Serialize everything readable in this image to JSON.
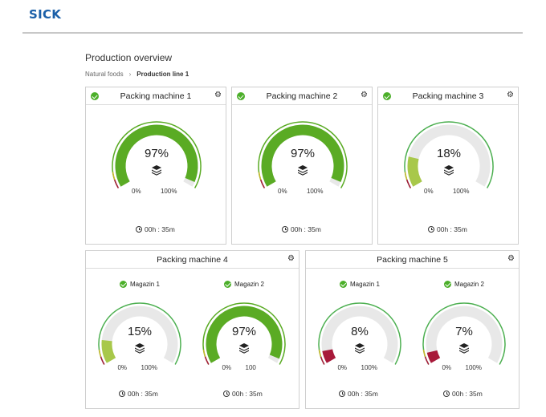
{
  "header": {
    "logo": "SICK"
  },
  "page": {
    "title": "Production overview",
    "breadcrumb": {
      "parent": "Natural foods",
      "current": "Production line 1"
    }
  },
  "colors": {
    "high": "#5aab24",
    "mid": "#a8c84a",
    "low": "#a8193a",
    "track": "#e8e8e8",
    "outer_good": "#4caf50",
    "status_ok": "#4caf2a"
  },
  "cards": [
    {
      "title": "Packing machine 1",
      "gauges": [
        {
          "label": "",
          "percent": 97,
          "value_text": "97%",
          "min_label": "0%",
          "max_label": "100%",
          "timer": "00h : 35m"
        }
      ]
    },
    {
      "title": "Packing machine 2",
      "gauges": [
        {
          "label": "",
          "percent": 97,
          "value_text": "97%",
          "min_label": "0%",
          "max_label": "100%",
          "timer": "00h : 35m"
        }
      ]
    },
    {
      "title": "Packing machine 3",
      "gauges": [
        {
          "label": "",
          "percent": 18,
          "value_text": "18%",
          "min_label": "0%",
          "max_label": "100%",
          "timer": "00h : 35m"
        }
      ]
    },
    {
      "title": "Packing machine 4",
      "gauges": [
        {
          "label": "Magazin 1",
          "percent": 15,
          "value_text": "15%",
          "min_label": "0%",
          "max_label": "100%",
          "timer": "00h : 35m"
        },
        {
          "label": "Magazin 2",
          "percent": 97,
          "value_text": "97%",
          "min_label": "0%",
          "max_label": "100",
          "timer": "00h : 35m"
        }
      ]
    },
    {
      "title": "Packing machine 5",
      "gauges": [
        {
          "label": "Magazin 1",
          "percent": 8,
          "value_text": "8%",
          "min_label": "0%",
          "max_label": "100%",
          "timer": "00h : 35m"
        },
        {
          "label": "Magazin 2",
          "percent": 7,
          "value_text": "7%",
          "min_label": "0%",
          "max_label": "100%",
          "timer": "00h : 35m"
        }
      ]
    }
  ]
}
